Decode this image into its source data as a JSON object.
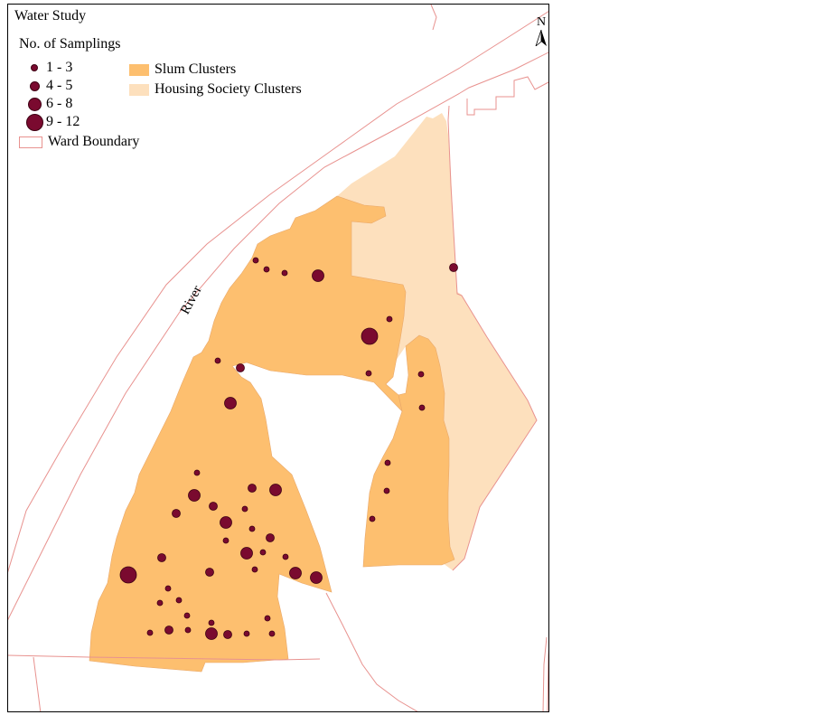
{
  "title": "Water Study",
  "legend": {
    "heading": "No. of Samplings",
    "sampling_classes": [
      {
        "label": "1 - 3"
      },
      {
        "label": "4 - 5"
      },
      {
        "label": "6 - 8"
      },
      {
        "label": "9 - 12"
      }
    ],
    "areas": [
      {
        "label": "Slum Clusters",
        "color": "#fdbf6f"
      },
      {
        "label": "Housing Society Clusters",
        "color": "#fde0bd"
      }
    ],
    "boundary": {
      "label": "Ward Boundary",
      "color": "#e8928f"
    }
  },
  "river_label": "River",
  "north_label": "N",
  "colors": {
    "point_fill": "#7a0a2f",
    "point_stroke": "#3d0012"
  }
}
